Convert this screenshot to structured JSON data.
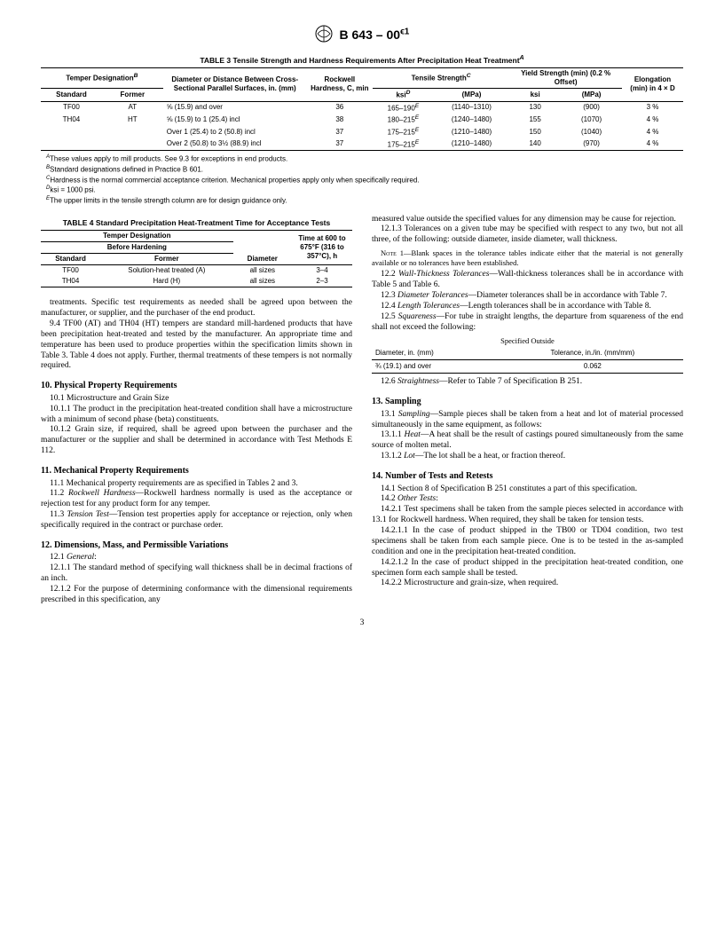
{
  "header": {
    "designation": "B 643 – 00",
    "epsilon": "ϵ1"
  },
  "table3": {
    "title": "TABLE 3  Tensile Strength and Hardness Requirements After Precipitation Heat Treatment",
    "title_sup": "A",
    "head": {
      "temper": "Temper Designation",
      "temper_sup": "B",
      "diameter": "Diameter or Distance Between Cross-Sectional Parallel Surfaces, in. (mm)",
      "rockwell": "Rockwell Hardness, C, min",
      "tensile": "Tensile Strength",
      "tensile_sup": "C",
      "yield": "Yield Strength (min) (0.2 % Offset)",
      "elong": "Elongation (min) in 4 × D",
      "standard": "Standard",
      "former": "Former",
      "ksi": "ksi",
      "ksi_sup": "D",
      "mpa": "(MPa)"
    },
    "rows": [
      {
        "std": "TF00",
        "fmr": "AT",
        "dia": "⅝ (15.9) and over",
        "rock": "36",
        "ksi": "165–190",
        "ksiE": "E",
        "mpa": "(1140–1310)",
        "yksi": "130",
        "ympa": "(900)",
        "el": "3 %"
      },
      {
        "std": "TH04",
        "fmr": "HT",
        "dia": "⅝ (15.9) to 1 (25.4) incl",
        "rock": "38",
        "ksi": "180–215",
        "ksiE": "E",
        "mpa": "(1240–1480)",
        "yksi": "155",
        "ympa": "(1070)",
        "el": "4 %"
      },
      {
        "std": "",
        "fmr": "",
        "dia": "Over 1 (25.4) to 2 (50.8) incl",
        "rock": "37",
        "ksi": "175–215",
        "ksiE": "E",
        "mpa": "(1210–1480)",
        "yksi": "150",
        "ympa": "(1040)",
        "el": "4 %"
      },
      {
        "std": "",
        "fmr": "",
        "dia": "Over 2 (50.8) to 3½ (88.9) incl",
        "rock": "37",
        "ksi": "175–215",
        "ksiE": "E",
        "mpa": "(1210–1480)",
        "yksi": "140",
        "ympa": "(970)",
        "el": "4 %"
      }
    ],
    "fn": {
      "A": "These values apply to mill products. See 9.3 for exceptions in end products.",
      "B": "Standard designations defined in Practice B 601.",
      "C": "Hardness is the normal commercial acceptance criterion. Mechanical properties apply only when specifically required.",
      "D": "ksi = 1000 psi.",
      "E": "The upper limits in the tensile strength column are for design guidance only."
    }
  },
  "table4": {
    "title": "TABLE 4  Standard Precipitation Heat-Treatment Time for Acceptance Tests",
    "head": {
      "temper": "Temper Designation",
      "before": "Before Hardening",
      "diameter": "Diameter",
      "time": "Time at 600 to 675°F (316 to 357°C), h",
      "standard": "Standard",
      "former": "Former"
    },
    "rows": [
      {
        "std": "TF00",
        "fmr": "Solution-heat treated (A)",
        "dia": "all sizes",
        "time": "3–4"
      },
      {
        "std": "TH04",
        "fmr": "Hard (H)",
        "dia": "all sizes",
        "time": "2–3"
      }
    ]
  },
  "left": {
    "p1": "treatments. Specific test requirements as needed shall be agreed upon between the manufacturer, or supplier, and the purchaser of the end product.",
    "p94": "9.4 TF00 (AT) and TH04 (HT) tempers are standard mill-hardened products that have been precipitation heat-treated and tested by the manufacturer. An appropriate time and temperature has been used to produce properties within the specification limits shown in Table 3. Table 4 does not apply. Further, thermal treatments of these tempers is not normally required.",
    "s10": "10. Physical Property Requirements",
    "p101": "10.1 Microstructure and Grain Size",
    "p1011": "10.1.1 The product in the precipitation heat-treated condition shall have a microstructure with a minimum of second phase (beta) constituents.",
    "p1012": "10.1.2 Grain size, if required, shall be agreed upon between the purchaser and the manufacturer or the supplier and shall be determined in accordance with Test Methods E 112.",
    "s11": "11. Mechanical Property Requirements",
    "p111": "11.1 Mechanical property requirements are as specified in Tables 2 and 3.",
    "p112a": "11.2 ",
    "p112i": "Rockwell Hardness",
    "p112b": "—Rockwell hardness normally is used as the acceptance or rejection test for any product form for any temper.",
    "p113a": "11.3 ",
    "p113i": "Tension Test",
    "p113b": "—Tension test properties apply for acceptance or rejection, only when specifically required in the contract or purchase order.",
    "s12": "12. Dimensions, Mass, and Permissible Variations",
    "p121a": "12.1 ",
    "p121i": "General",
    "p121b": ":",
    "p1211": "12.1.1 The standard method of specifying wall thickness shall be in decimal fractions of an inch.",
    "p1212": "12.1.2 For the purpose of determining conformance with the dimensional requirements prescribed in this specification, any"
  },
  "right": {
    "p1212c": "measured value outside the specified values for any dimension may be cause for rejection.",
    "p1213": "12.1.3 Tolerances on a given tube may be specified with respect to any two, but not all three, of the following: outside diameter, inside diameter, wall thickness.",
    "note1_label": "Note",
    "note1_num": "1—",
    "note1": "Blank spaces in the tolerance tables indicate either that the material is not generally available or no tolerances have been established.",
    "p122a": "12.2 ",
    "p122i": "Wall-Thickness Tolerances",
    "p122b": "—Wall-thickness tolerances shall be in accordance with Table 5 and Table 6.",
    "p123a": "12.3 ",
    "p123i": "Diameter Tolerances",
    "p123b": "—Diameter tolerances shall be in accordance with Table 7.",
    "p124a": "12.4 ",
    "p124i": "Length Tolerances",
    "p124b": "—Length tolerances shall be in accordance with Table 8.",
    "p125a": "12.5 ",
    "p125i": "Squareness",
    "p125b": "—For tube in straight lengths, the departure from squareness of the end shall not exceed the following:",
    "sq_title": "Specified Outside",
    "sq_h1": "Diameter, in. (mm)",
    "sq_h2": "Tolerance, in./in. (mm/mm)",
    "sq_r1": "¾ (19.1) and over",
    "sq_r2": "0.062",
    "p126a": "12.6 ",
    "p126i": "Straightness",
    "p126b": "—Refer to Table 7 of Specification B 251.",
    "s13": "13. Sampling",
    "p131a": "13.1 ",
    "p131i": "Sampling",
    "p131b": "—Sample pieces shall be taken from a heat and lot of material processed simultaneously in the same equipment, as follows:",
    "p1311a": "13.1.1 ",
    "p1311i": "Heat",
    "p1311b": "—A heat shall be the result of castings poured simultaneously from the same source of molten metal.",
    "p1312a": "13.1.2 ",
    "p1312i": "Lot",
    "p1312b": "—The lot shall be a heat, or fraction thereof.",
    "s14": "14. Number of Tests and Retests",
    "p141": "14.1 Section 8 of Specification B 251 constitutes a part of this specification.",
    "p142a": "14.2 ",
    "p142i": "Other Tests",
    "p142b": ":",
    "p1421": "14.2.1 Test specimens shall be taken from the sample pieces selected in accordance with 13.1 for Rockwell hardness. When required, they shall be taken for tension tests.",
    "p14211": "14.2.1.1 In the case of product shipped in the TB00 or TD04 condition, two test specimens shall be taken from each sample piece. One is to be tested in the as-sampled condition and one in the precipitation heat-treated condition.",
    "p14212": "14.2.1.2 In the case of product shipped in the precipitation heat-treated condition, one specimen form each sample shall be tested.",
    "p1422": "14.2.2 Microstructure and grain-size, when required."
  },
  "page": "3"
}
